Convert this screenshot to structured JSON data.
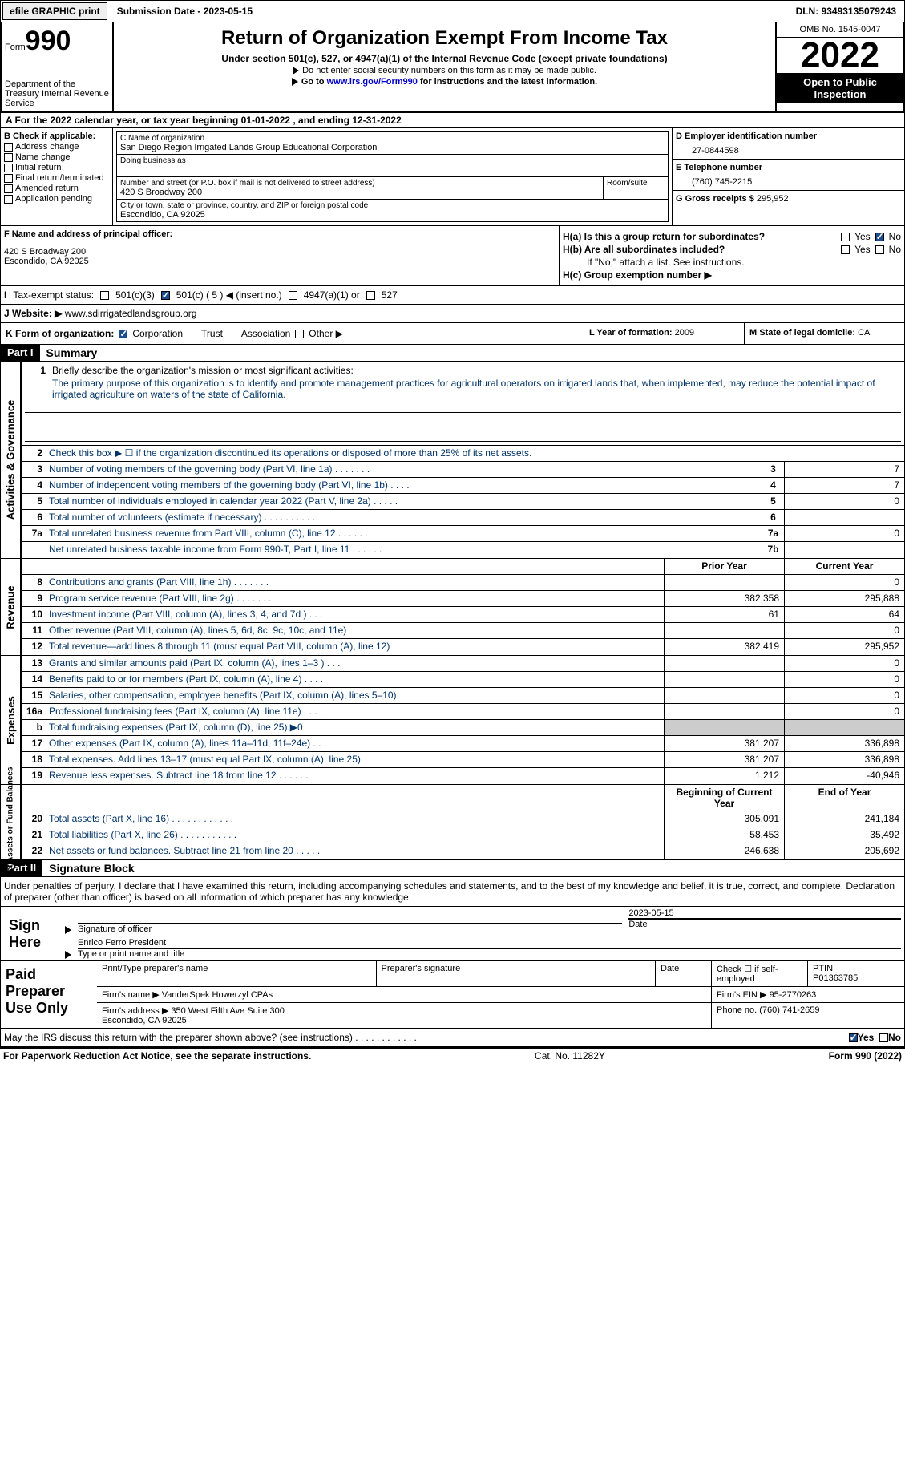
{
  "top": {
    "efile": "efile GRAPHIC print",
    "submission": "Submission Date - 2023-05-15",
    "dln": "DLN: 93493135079243"
  },
  "header": {
    "form_word": "Form",
    "form_num": "990",
    "dept": "Department of the Treasury Internal Revenue Service",
    "title": "Return of Organization Exempt From Income Tax",
    "sub1": "Under section 501(c), 527, or 4947(a)(1) of the Internal Revenue Code (except private foundations)",
    "sub2a": "Do not enter social security numbers on this form as it may be made public.",
    "sub2b_pre": "Go to ",
    "sub2b_link": "www.irs.gov/Form990",
    "sub2b_post": " for instructions and the latest information.",
    "omb": "OMB No. 1545-0047",
    "year": "2022",
    "open": "Open to Public Inspection"
  },
  "rowA": "A  For the 2022 calendar year, or tax year beginning 01-01-2022    , and ending 12-31-2022",
  "colB": {
    "hd": "B Check if applicable:",
    "items": [
      "Address change",
      "Name change",
      "Initial return",
      "Final return/terminated",
      "Amended return",
      "Application pending"
    ]
  },
  "colC": {
    "name_lbl": "C Name of organization",
    "name": "San Diego Region Irrigated Lands Group Educational Corporation",
    "dba_lbl": "Doing business as",
    "addr_lbl": "Number and street (or P.O. box if mail is not delivered to street address)",
    "room_lbl": "Room/suite",
    "addr": "420 S Broadway 200",
    "city_lbl": "City or town, state or province, country, and ZIP or foreign postal code",
    "city": "Escondido, CA  92025"
  },
  "colD": {
    "ein_lbl": "D Employer identification number",
    "ein": "27-0844598",
    "tel_lbl": "E Telephone number",
    "tel": "(760) 745-2215",
    "gross_lbl": "G Gross receipts $",
    "gross": "295,952"
  },
  "rowF": {
    "lbl": "F  Name and address of principal officer:",
    "addr": "420 S Broadway 200\nEscondido, CA  92025"
  },
  "rowH": {
    "a": "H(a)  Is this a group return for subordinates?",
    "b": "H(b)  Are all subordinates included?",
    "b2": "If \"No,\" attach a list. See instructions.",
    "c": "H(c)  Group exemption number ▶",
    "yes": "Yes",
    "no": "No"
  },
  "rowI": {
    "lbl": "Tax-exempt status:",
    "c3": "501(c)(3)",
    "c5": "501(c) ( 5 ) ◀ (insert no.)",
    "a4947": "4947(a)(1) or",
    "s527": "527"
  },
  "rowJ": {
    "lbl": "J   Website: ▶",
    "val": " www.sdirrigatedlandsgroup.org"
  },
  "rowK": {
    "lbl": "K Form of organization:",
    "corp": "Corporation",
    "trust": "Trust",
    "assoc": "Association",
    "other": "Other ▶"
  },
  "rowL": {
    "lbl": "L Year of formation:",
    "val": "2009"
  },
  "rowM": {
    "lbl": "M State of legal domicile:",
    "val": "CA"
  },
  "parts": {
    "p1": "Part I",
    "p1t": "Summary",
    "p2": "Part II",
    "p2t": "Signature Block"
  },
  "summary": {
    "l1_lbl": "Briefly describe the organization's mission or most significant activities:",
    "l1_txt": "The primary purpose of this organization is to identify and promote management practices for agricultural operators on irrigated lands that, when implemented, may reduce the potential impact of irrigated agriculture on waters of the state of California.",
    "l2": "Check this box ▶  ☐  if the organization discontinued its operations or disposed of more than 25% of its net assets.",
    "l3": "Number of voting members of the governing body (Part VI, line 1a)   .    .    .    .    .    .    .",
    "l4": "Number of independent voting members of the governing body (Part VI, line 1b)    .    .    .    .",
    "l5": "Total number of individuals employed in calendar year 2022 (Part V, line 2a)   .    .    .    .    .",
    "l6": "Total number of volunteers (estimate if necessary)     .    .    .    .    .    .    .    .    .    .",
    "l7a": "Total unrelated business revenue from Part VIII, column (C), line 12    .    .    .    .    .    .",
    "l7b": "Net unrelated business taxable income from Form 990-T, Part I, line 11    .    .    .    .    .    .",
    "v3": "7",
    "v4": "7",
    "v5": "0",
    "v6": "",
    "v7a": "0",
    "v7b": "",
    "prior": "Prior Year",
    "current": "Current Year",
    "begin": "Beginning of Current Year",
    "end": "End of Year",
    "rows": [
      {
        "n": "8",
        "t": "Contributions and grants (Part VIII, line 1h)    .    .    .    .    .    .    .",
        "p": "",
        "c": "0"
      },
      {
        "n": "9",
        "t": "Program service revenue (Part VIII, line 2g)    .    .    .    .    .    .    .",
        "p": "382,358",
        "c": "295,888"
      },
      {
        "n": "10",
        "t": "Investment income (Part VIII, column (A), lines 3, 4, and 7d )    .    .    .",
        "p": "61",
        "c": "64"
      },
      {
        "n": "11",
        "t": "Other revenue (Part VIII, column (A), lines 5, 6d, 8c, 9c, 10c, and 11e)",
        "p": "",
        "c": "0"
      },
      {
        "n": "12",
        "t": "Total revenue—add lines 8 through 11 (must equal Part VIII, column (A), line 12)",
        "p": "382,419",
        "c": "295,952"
      }
    ],
    "exp": [
      {
        "n": "13",
        "t": "Grants and similar amounts paid (Part IX, column (A), lines 1–3 )    .    .    .",
        "p": "",
        "c": "0"
      },
      {
        "n": "14",
        "t": "Benefits paid to or for members (Part IX, column (A), line 4)    .    .    .    .",
        "p": "",
        "c": "0"
      },
      {
        "n": "15",
        "t": "Salaries, other compensation, employee benefits (Part IX, column (A), lines 5–10)",
        "p": "",
        "c": "0"
      },
      {
        "n": "16a",
        "t": "Professional fundraising fees (Part IX, column (A), line 11e)    .    .    .    .",
        "p": "",
        "c": "0"
      },
      {
        "n": "b",
        "t": "Total fundraising expenses (Part IX, column (D), line 25) ▶0",
        "p": "grey",
        "c": "grey"
      },
      {
        "n": "17",
        "t": "Other expenses (Part IX, column (A), lines 11a–11d, 11f–24e)    .    .    .",
        "p": "381,207",
        "c": "336,898"
      },
      {
        "n": "18",
        "t": "Total expenses. Add lines 13–17 (must equal Part IX, column (A), line 25)",
        "p": "381,207",
        "c": "336,898"
      },
      {
        "n": "19",
        "t": "Revenue less expenses. Subtract line 18 from line 12    .    .    .    .    .    .",
        "p": "1,212",
        "c": "-40,946"
      }
    ],
    "net": [
      {
        "n": "20",
        "t": "Total assets (Part X, line 16)    .    .    .    .    .    .    .    .    .    .    .    .",
        "p": "305,091",
        "c": "241,184"
      },
      {
        "n": "21",
        "t": "Total liabilities (Part X, line 26)    .    .    .    .    .    .    .    .    .    .    .",
        "p": "58,453",
        "c": "35,492"
      },
      {
        "n": "22",
        "t": "Net assets or fund balances. Subtract line 21 from line 20    .    .    .    .    .",
        "p": "246,638",
        "c": "205,692"
      }
    ]
  },
  "sideLabels": {
    "ag": "Activities & Governance",
    "rev": "Revenue",
    "exp": "Expenses",
    "net": "Net Assets or\nFund Balances"
  },
  "sig": {
    "decl": "Under penalties of perjury, I declare that I have examined this return, including accompanying schedules and statements, and to the best of my knowledge and belief, it is true, correct, and complete. Declaration of preparer (other than officer) is based on all information of which preparer has any knowledge.",
    "sign_here": "Sign Here",
    "sig_of": "Signature of officer",
    "date": "Date",
    "date_val": "2023-05-15",
    "name": "Enrico Ferro  President",
    "name_lbl": "Type or print name and title"
  },
  "prep": {
    "title": "Paid Preparer Use Only",
    "print_lbl": "Print/Type preparer's name",
    "sig_lbl": "Preparer's signature",
    "date_lbl": "Date",
    "check_lbl": "Check ☐ if self-employed",
    "ptin_lbl": "PTIN",
    "ptin": "P01363785",
    "firm_lbl": "Firm's name    ▶",
    "firm": "VanderSpek Howerzyl CPAs",
    "ein_lbl": "Firm's EIN ▶",
    "ein": "95-2770263",
    "addr_lbl": "Firm's address ▶",
    "addr": "350 West Fifth Ave Suite 300\nEscondido, CA  92025",
    "phone_lbl": "Phone no.",
    "phone": "(760) 741-2659"
  },
  "may": {
    "txt": "May the IRS discuss this return with the preparer shown above? (see instructions)    .    .    .    .    .    .    .    .    .    .    .    .",
    "yes": "Yes",
    "no": "No"
  },
  "footer": {
    "l": "For Paperwork Reduction Act Notice, see the separate instructions.",
    "m": "Cat. No. 11282Y",
    "r": "Form 990 (2022)"
  }
}
